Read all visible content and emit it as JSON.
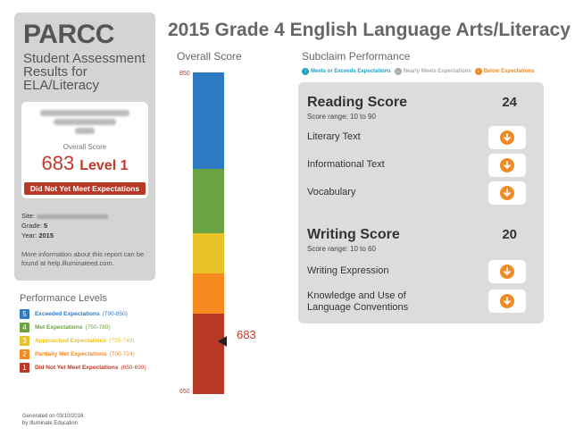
{
  "sidebar": {
    "brand": "PARCC",
    "subtitle_line1": "Student Assessment",
    "subtitle_line2": "Results for ELA/Literacy",
    "overall_label": "Overall Score",
    "score": "683",
    "level": "Level 1",
    "badge": "Did Not Yet Meet Expectations",
    "site_label": "Site:",
    "grade_label": "Grade:",
    "grade": "5",
    "year_label": "Year:",
    "year": "2015",
    "note": "More information about this report can be found at help.illuminateed.com."
  },
  "perf_levels": {
    "heading": "Performance Levels",
    "items": [
      {
        "num": "5",
        "name": "Exceeded Expectations",
        "range": "(790-850)",
        "color": "#2e7bc4"
      },
      {
        "num": "4",
        "name": "Met Expectations",
        "range": "(750-789)",
        "color": "#6aa342"
      },
      {
        "num": "3",
        "name": "Approached Expectations",
        "range": "(725-749)",
        "color": "#e8c327"
      },
      {
        "num": "2",
        "name": "Partially Met Expectations",
        "range": "(700-724)",
        "color": "#f58a1f"
      },
      {
        "num": "1",
        "name": "Did Not Yet Meet Expectations",
        "range": "(650-699)",
        "color": "#b83a26"
      }
    ]
  },
  "footer": {
    "line1": "Generated on 03/10/2016",
    "line2": "by Illuminate Education"
  },
  "title": "2015 Grade 4 English Language Arts/Literacy",
  "overall": {
    "heading": "Overall Score",
    "max_label": "850",
    "min_label": "650",
    "score_label": "683",
    "score_value": 683,
    "scale_min": 650,
    "scale_max": 850,
    "bands": [
      {
        "from": 790,
        "to": 850,
        "color": "#2e7bc4"
      },
      {
        "from": 750,
        "to": 790,
        "color": "#6aa342"
      },
      {
        "from": 725,
        "to": 750,
        "color": "#e8c327"
      },
      {
        "from": 700,
        "to": 725,
        "color": "#f58a1f"
      },
      {
        "from": 650,
        "to": 700,
        "color": "#b83a26"
      }
    ]
  },
  "subclaim": {
    "heading": "Subclaim Performance",
    "legend": {
      "meets": "Meets or Exceeds Expectations",
      "nearly": "Nearly Meets Expectations",
      "below": "Below Expectations",
      "meets_color": "#1fa2c6",
      "nearly_color": "#aaaaaa",
      "below_color": "#f08a24"
    },
    "reading": {
      "title": "Reading Score",
      "range": "Score range: 10 to 90",
      "score": "24",
      "rows": [
        "Literary Text",
        "Informational Text",
        "Vocabulary"
      ]
    },
    "writing": {
      "title": "Writing Score",
      "range": "Score range: 10 to 60",
      "score": "20",
      "rows": [
        "Writing Expression",
        "Knowledge and Use of",
        "Language Conventions"
      ]
    }
  }
}
